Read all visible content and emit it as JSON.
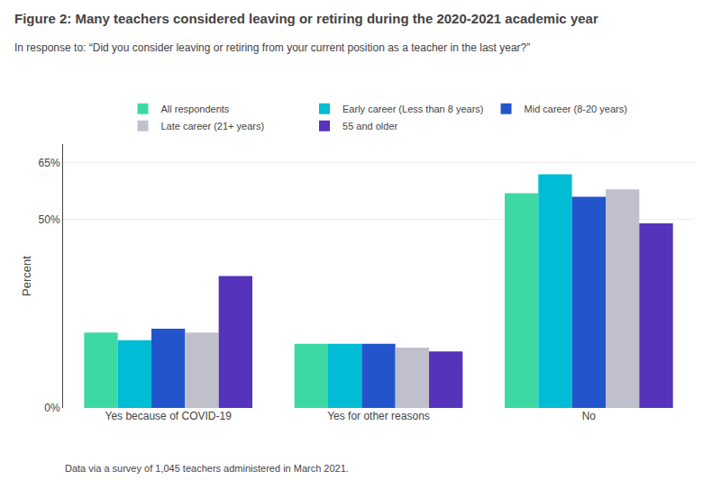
{
  "chart_data": {
    "type": "bar",
    "title": "Figure 2: Many teachers considered leaving or retiring during the 2020-2021 academic year",
    "subtitle": "In response to: “Did you consider leaving or retiring from your current position as a teacher in the last year?”",
    "annotations": [
      "Data via a survey of 1,045 teachers administered in March 2021."
    ],
    "ylabel": "Percent",
    "categories": [
      "Yes because of COVID-19",
      "Yes for other reasons",
      "No"
    ],
    "series": [
      {
        "name": "All respondents",
        "color": "#3dd9a4",
        "values": [
          20,
          17,
          57
        ]
      },
      {
        "name": "Early career (Less than 8 years)",
        "color": "#00bcd4",
        "values": [
          18,
          17,
          62
        ]
      },
      {
        "name": "Mid career (8-20 years)",
        "color": "#2255cc",
        "values": [
          21,
          17,
          56
        ]
      },
      {
        "name": "Late career (21+ years)",
        "color": "#c0c0cc",
        "values": [
          20,
          16,
          58
        ]
      },
      {
        "name": "55 and older",
        "color": "#5533bb",
        "values": [
          35,
          15,
          49
        ]
      }
    ],
    "ylim": [
      0,
      70
    ],
    "yticks": [
      {
        "value": 0,
        "label": "0%"
      },
      {
        "value": 50,
        "label": "50%"
      },
      {
        "value": 65,
        "label": "65%"
      }
    ],
    "grid": true,
    "legend": "top"
  }
}
